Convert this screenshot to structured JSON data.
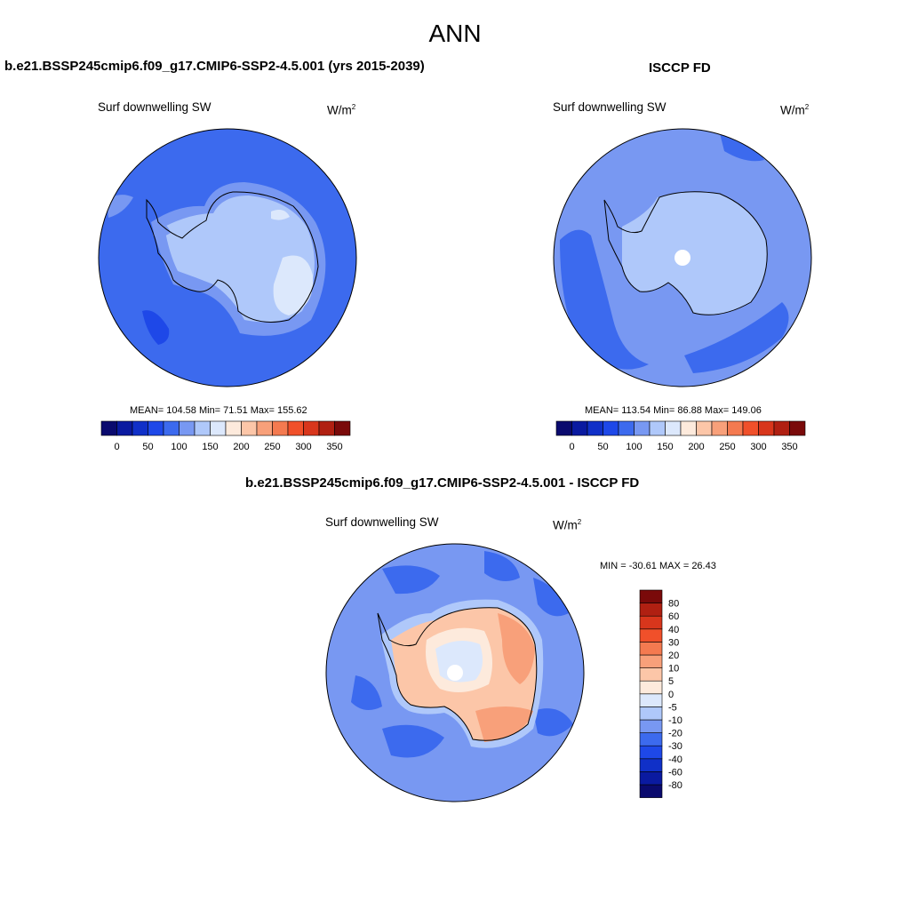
{
  "page": {
    "title": "ANN"
  },
  "panels": {
    "model": {
      "title": "b.e21.BSSP245cmip6.f09_g17.CMIP6-SSP2-4.5.001 (yrs 2015-2039)",
      "variable": "Surf downwelling SW",
      "units": "W/m",
      "units_sup": "2",
      "stats": "MEAN= 104.58  Min=  71.51  Max= 155.62"
    },
    "obs": {
      "title": "ISCCP FD",
      "variable": "Surf downwelling SW",
      "units": "W/m",
      "units_sup": "2",
      "stats": "MEAN= 113.54  Min=  86.88  Max= 149.06"
    },
    "diff": {
      "title": "b.e21.BSSP245cmip6.f09_g17.CMIP6-SSP2-4.5.001 - ISCCP FD",
      "variable": "Surf downwelling SW",
      "units": "W/m",
      "units_sup": "2",
      "stats": "MIN = -30.61 MAX =  26.43"
    }
  },
  "colorbars": {
    "absolute": {
      "colors": [
        "#0a0a6e",
        "#0a1aa0",
        "#1030c8",
        "#1e48e8",
        "#3c6aee",
        "#7898f2",
        "#afc8fa",
        "#dce8fc",
        "#fdeadc",
        "#fcc6a8",
        "#f8a07a",
        "#f47a50",
        "#f0502a",
        "#d8361c",
        "#b02012",
        "#7a0a0a"
      ],
      "labels": [
        "0",
        "50",
        "100",
        "150",
        "200",
        "250",
        "300",
        "350"
      ]
    },
    "difference": {
      "colors": [
        "#0a0a6e",
        "#0a1aa0",
        "#1030c8",
        "#1e48e8",
        "#3c6aee",
        "#7898f2",
        "#afc8fa",
        "#dce8fc",
        "#fdeadc",
        "#fcc6a8",
        "#f8a07a",
        "#f47a50",
        "#f0502a",
        "#d8361c",
        "#b02012",
        "#7a0a0a"
      ],
      "labels": [
        "-80",
        "-60",
        "-40",
        "-30",
        "-20",
        "-10",
        "-5",
        "0",
        "5",
        "10",
        "20",
        "30",
        "40",
        "60",
        "80"
      ]
    }
  },
  "map_colors": {
    "ocean_model": "#3c6aee",
    "model_ring": "#7898f2",
    "model_interior": "#afc8fa",
    "model_pale": "#dce8fc",
    "model_dark_patch": "#1e48e8",
    "obs_ocean": "#7898f2",
    "obs_band": "#3c6aee",
    "diff_ocean": "#7898f2",
    "diff_warm": "#fcc6a8",
    "diff_warmer": "#f8a07a",
    "diff_pale": "#fdeadc",
    "diff_cool": "#dce8fc"
  }
}
